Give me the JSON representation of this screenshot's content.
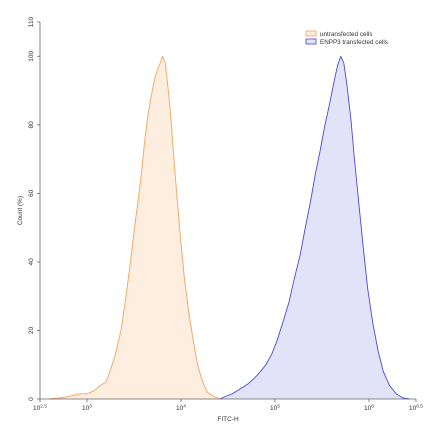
{
  "chart_data": {
    "type": "area",
    "title": "",
    "xlabel": "FITC-H",
    "ylabel": "Count (%)",
    "xscale": "log",
    "xlim": [
      316.2,
      3162278
    ],
    "ylim": [
      0,
      110
    ],
    "grid": false,
    "legend_position": "top-right",
    "x_ticks": [
      {
        "value": 316.2,
        "base": "10",
        "exp": "2.5"
      },
      {
        "value": 1000,
        "base": "10",
        "exp": "3"
      },
      {
        "value": 10000,
        "base": "10",
        "exp": "4"
      },
      {
        "value": 100000,
        "base": "10",
        "exp": "5"
      },
      {
        "value": 1000000,
        "base": "10",
        "exp": "6"
      },
      {
        "value": 3162278,
        "base": "10",
        "exp": "6.5"
      }
    ],
    "y_ticks": [
      0,
      20,
      40,
      60,
      80,
      100,
      110
    ],
    "series": [
      {
        "name": "untransfected cells",
        "color": "#f5a25d",
        "fill": "#fdeee0",
        "points": [
          [
            400,
            0
          ],
          [
            550,
            0.4
          ],
          [
            700,
            1
          ],
          [
            850,
            1.5
          ],
          [
            1000,
            1.5
          ],
          [
            1200,
            2.5
          ],
          [
            1400,
            4
          ],
          [
            1600,
            5
          ],
          [
            1800,
            9
          ],
          [
            2000,
            13
          ],
          [
            2300,
            20
          ],
          [
            2600,
            30
          ],
          [
            2900,
            40
          ],
          [
            3200,
            50
          ],
          [
            3500,
            58
          ],
          [
            3800,
            66
          ],
          [
            4100,
            75
          ],
          [
            4400,
            82
          ],
          [
            4800,
            88
          ],
          [
            5200,
            93
          ],
          [
            5600,
            96
          ],
          [
            6000,
            98
          ],
          [
            6400,
            100
          ],
          [
            6800,
            98
          ],
          [
            7200,
            92
          ],
          [
            7700,
            84
          ],
          [
            8300,
            72
          ],
          [
            9000,
            60
          ],
          [
            9800,
            48
          ],
          [
            10800,
            36
          ],
          [
            12000,
            26
          ],
          [
            13500,
            17
          ],
          [
            15000,
            10
          ],
          [
            17000,
            5
          ],
          [
            19000,
            2
          ],
          [
            22000,
            0.8
          ],
          [
            26000,
            0
          ]
        ]
      },
      {
        "name": "ENPP3 transfected cells",
        "color": "#4a4ad6",
        "fill": "#e2e2f8",
        "points": [
          [
            26000,
            0
          ],
          [
            30000,
            0.8
          ],
          [
            35000,
            1.5
          ],
          [
            40000,
            2.5
          ],
          [
            46000,
            3.5
          ],
          [
            52000,
            4.5
          ],
          [
            60000,
            6
          ],
          [
            70000,
            8
          ],
          [
            80000,
            10
          ],
          [
            92000,
            13
          ],
          [
            105000,
            17
          ],
          [
            120000,
            22
          ],
          [
            140000,
            28
          ],
          [
            160000,
            35
          ],
          [
            185000,
            42
          ],
          [
            210000,
            50
          ],
          [
            240000,
            58
          ],
          [
            270000,
            66
          ],
          [
            300000,
            72
          ],
          [
            340000,
            80
          ],
          [
            380000,
            86
          ],
          [
            420000,
            92
          ],
          [
            460000,
            97
          ],
          [
            500000,
            100
          ],
          [
            540000,
            98
          ],
          [
            580000,
            92
          ],
          [
            640000,
            82
          ],
          [
            700000,
            70
          ],
          [
            780000,
            57
          ],
          [
            870000,
            44
          ],
          [
            970000,
            32
          ],
          [
            1100000,
            22
          ],
          [
            1250000,
            14
          ],
          [
            1420000,
            8
          ],
          [
            1650000,
            4
          ],
          [
            1950000,
            1.5
          ],
          [
            2300000,
            0.3
          ],
          [
            2700000,
            0
          ]
        ]
      }
    ]
  }
}
